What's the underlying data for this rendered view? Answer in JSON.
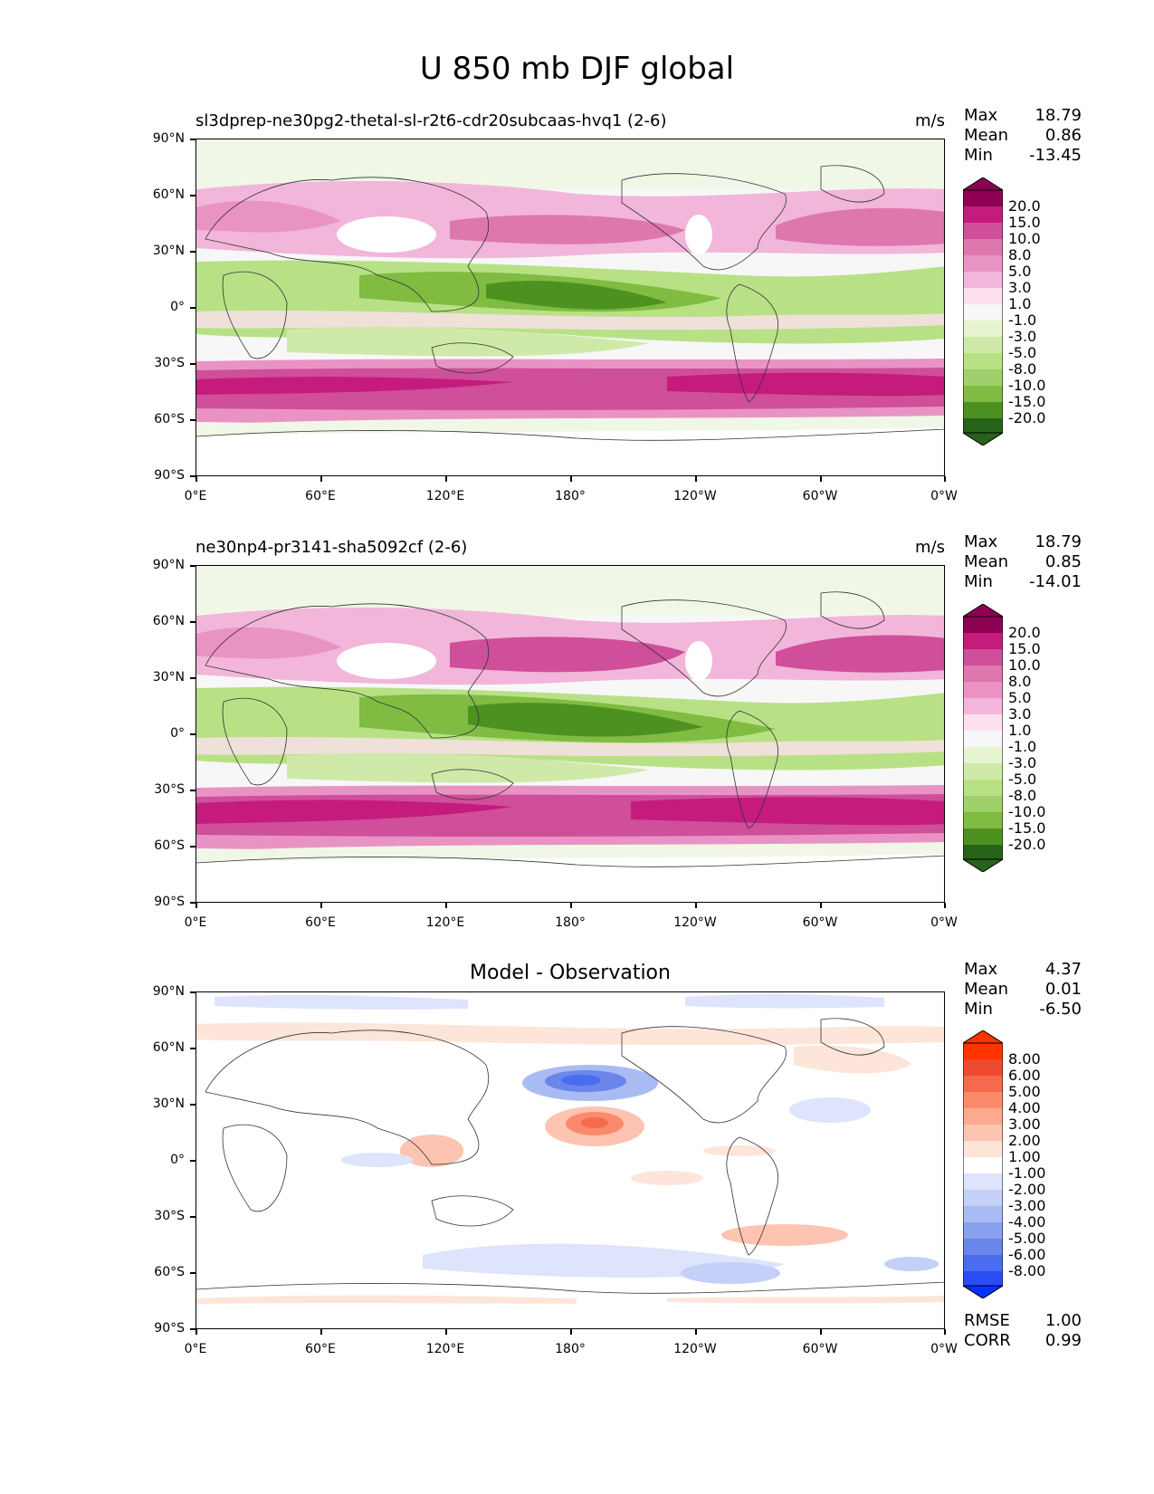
{
  "title": "U 850 mb DJF global",
  "colors": {
    "pos": [
      "#f7f7f7",
      "#fde0ef",
      "#f8c9e1",
      "#f1b6da",
      "#e993c4",
      "#de77ae",
      "#cf4f9a",
      "#c51b7d",
      "#8e0152"
    ],
    "neg": [
      "#f0f7e6",
      "#e6f5d0",
      "#cfeaa8",
      "#b8e186",
      "#9fd06b",
      "#7fbc41",
      "#5ea42c",
      "#4d9221",
      "#276419"
    ],
    "diff_pos": [
      "#fee5d9",
      "#fcc4b1",
      "#fca98f",
      "#fb8a6c",
      "#f56a4e",
      "#ef4a2f",
      "#ff3300"
    ],
    "diff_neg": [
      "#dde4fb",
      "#c4d0f8",
      "#a9bbf3",
      "#8aa1ee",
      "#6a86ea",
      "#4a6cf0",
      "#2a4cf5",
      "#0033ff"
    ]
  },
  "axes": {
    "yticks": [
      "90°N",
      "60°N",
      "30°N",
      "0°",
      "30°S",
      "60°S",
      "90°S"
    ],
    "xticks": [
      "0°E",
      "60°E",
      "120°E",
      "180°",
      "120°W",
      "60°W",
      "0°W"
    ]
  },
  "panels": [
    {
      "title": "sl3dprep-ne30pg2-thetal-sl-r2t6-cdr20subcaas-hvq1 (2-6)",
      "units": "m/s",
      "stats": {
        "max_label": "Max",
        "max": "18.79",
        "mean_label": "Mean",
        "mean": "0.86",
        "min_label": "Min",
        "min": "-13.45"
      },
      "colorbar": [
        "20.0",
        "15.0",
        "10.0",
        "8.0",
        "5.0",
        "3.0",
        "1.0",
        "-1.0",
        "-3.0",
        "-5.0",
        "-8.0",
        "-10.0",
        "-15.0",
        "-20.0"
      ]
    },
    {
      "title": "ne30np4-pr3141-sha5092cf (2-6)",
      "units": "m/s",
      "stats": {
        "max_label": "Max",
        "max": "18.79",
        "mean_label": "Mean",
        "mean": "0.85",
        "min_label": "Min",
        "min": "-14.01"
      },
      "colorbar": [
        "20.0",
        "15.0",
        "10.0",
        "8.0",
        "5.0",
        "3.0",
        "1.0",
        "-1.0",
        "-3.0",
        "-5.0",
        "-8.0",
        "-10.0",
        "-15.0",
        "-20.0"
      ]
    },
    {
      "title": "Model - Observation",
      "units": "",
      "stats": {
        "max_label": "Max",
        "max": "4.37",
        "mean_label": "Mean",
        "mean": "0.01",
        "min_label": "Min",
        "min": "-6.50"
      },
      "colorbar": [
        "8.00",
        "6.00",
        "5.00",
        "4.00",
        "3.00",
        "2.00",
        "1.00",
        "-1.00",
        "-2.00",
        "-3.00",
        "-4.00",
        "-5.00",
        "-6.00",
        "-8.00"
      ],
      "footer": {
        "rmse_label": "RMSE",
        "rmse": "1.00",
        "corr_label": "CORR",
        "corr": "0.99"
      }
    }
  ]
}
